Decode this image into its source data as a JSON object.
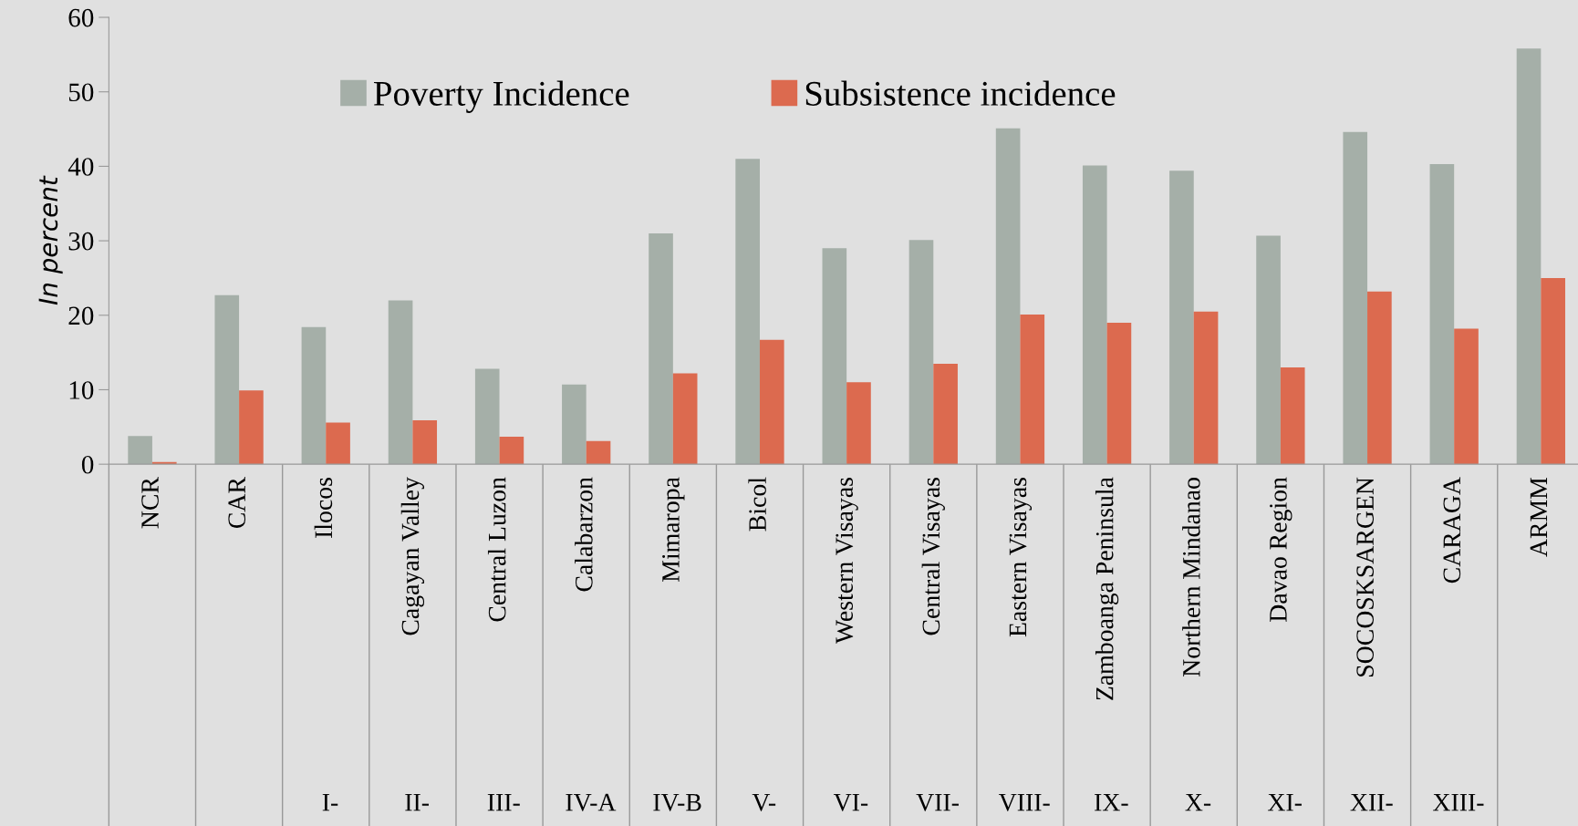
{
  "chart_data": {
    "type": "bar",
    "ylabel": "In percent",
    "categories": [
      "NCR",
      "CAR",
      "Ilocos",
      "Cagayan Valley",
      "Central Luzon",
      "Calabarzon",
      "Mimaropa",
      "Bicol",
      "Western Visayas",
      "Central Visayas",
      "Eastern Visayas",
      "Zamboanga Peninsula",
      "Northern Mindanao",
      "Davao Region",
      "SOCOSKSARGEN",
      "CARAGA",
      "ARMM"
    ],
    "series": [
      {
        "name": "Poverty Incidence",
        "color": "#a5afa8",
        "values": [
          3.8,
          22.7,
          18.4,
          22.0,
          12.8,
          10.7,
          31.0,
          41.0,
          29.0,
          30.1,
          45.1,
          40.1,
          39.4,
          30.7,
          44.6,
          40.3,
          55.8
        ]
      },
      {
        "name": "Subsistence incidence",
        "color": "#dc6a4f",
        "values": [
          0.3,
          9.9,
          5.6,
          5.9,
          3.7,
          3.1,
          12.2,
          16.7,
          11.0,
          13.5,
          20.1,
          19.0,
          20.5,
          13.0,
          23.2,
          18.2,
          25.0
        ]
      }
    ],
    "ylim": [
      0,
      60
    ],
    "yticks": [
      0,
      10,
      20,
      30,
      40,
      50,
      60
    ],
    "grid": false,
    "legend": "top",
    "annotations": [
      "I-",
      "II-",
      "III-",
      "IV-A",
      "IV-B",
      "V-",
      "VI-",
      "VII-",
      "VIII-",
      "IX-",
      "X-",
      "XI-",
      "XII-",
      "XIII-"
    ]
  }
}
